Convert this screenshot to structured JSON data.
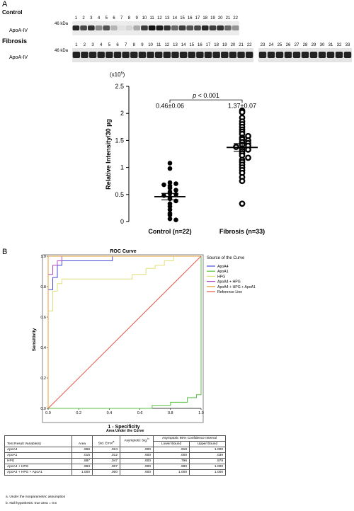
{
  "panel_a": {
    "label": "A",
    "control_title": "Control",
    "fibrosis_title": "Fibrosis",
    "blot_label": "ApoA-IV",
    "marker_label": "46 kDa",
    "control_lanes": [
      "1",
      "2",
      "3",
      "4",
      "5",
      "6",
      "7",
      "8",
      "9",
      "10",
      "11",
      "12",
      "13",
      "14",
      "15",
      "16",
      "17",
      "18",
      "19",
      "20",
      "21",
      "22"
    ],
    "fibrosis_lanes": [
      "1",
      "2",
      "3",
      "4",
      "5",
      "6",
      "7",
      "8",
      "9",
      "10",
      "11",
      "12",
      "13",
      "14",
      "15",
      "16",
      "17",
      "18",
      "19",
      "20",
      "21",
      "22",
      "23",
      "24",
      "25",
      "26",
      "27",
      "28",
      "29",
      "30",
      "31",
      "32",
      "33"
    ]
  },
  "chart_data": [
    {
      "type": "scatter",
      "ylabel": "Relative Intensity/30 µg",
      "ylabel_multiplier": "(x10⁵)",
      "ylim": [
        0,
        2.5
      ],
      "yticks": [
        "0",
        "0.5",
        "1",
        "1.5",
        "2",
        "2.5"
      ],
      "categories": [
        "Control (n=22)",
        "Fibrosis (n=33)"
      ],
      "significance": "p < 0.001",
      "series": [
        {
          "name": "Control (n=22)",
          "marker": "filled-circle",
          "mean": 0.46,
          "sem": 0.06,
          "annotation": "0.46±0.06",
          "values": [
            1.08,
            0.98,
            0.72,
            0.7,
            0.68,
            0.66,
            0.62,
            0.58,
            0.55,
            0.52,
            0.5,
            0.48,
            0.45,
            0.42,
            0.38,
            0.33,
            0.28,
            0.22,
            0.15,
            0.12,
            0.05,
            0.03
          ]
        },
        {
          "name": "Fibrosis (n=33)",
          "marker": "open-circle",
          "mean": 1.37,
          "sem": 0.07,
          "annotation": "1.37±0.07",
          "values": [
            2.05,
            2.02,
            1.92,
            1.85,
            1.8,
            1.75,
            1.7,
            1.66,
            1.62,
            1.58,
            1.55,
            1.52,
            1.5,
            1.47,
            1.45,
            1.42,
            1.4,
            1.38,
            1.35,
            1.33,
            1.3,
            1.26,
            1.22,
            1.18,
            1.14,
            1.1,
            1.05,
            1.0,
            0.95,
            0.9,
            0.82,
            0.75,
            0.33
          ]
        }
      ]
    },
    {
      "type": "line",
      "title": "ROC Curve",
      "xlabel": "1 - Specificity",
      "ylabel": "Sensitivity",
      "xlim": [
        0,
        1
      ],
      "ylim": [
        0,
        1
      ],
      "xticks": [
        "0.0",
        "0.2",
        "0.4",
        "0.6",
        "0.8",
        "1.0"
      ],
      "yticks": [
        "0.0",
        "0.2",
        "0.4",
        "0.6",
        "0.8",
        "1.0"
      ],
      "legend_title": "Source of the Curve",
      "legend_position": "right",
      "series": [
        {
          "name": "ApoA4",
          "color": "#4a4ad8",
          "points": [
            [
              0,
              0
            ],
            [
              0,
              0.78
            ],
            [
              0.03,
              0.78
            ],
            [
              0.03,
              0.86
            ],
            [
              0.06,
              0.86
            ],
            [
              0.06,
              0.94
            ],
            [
              0.09,
              0.94
            ],
            [
              0.09,
              0.97
            ],
            [
              0.42,
              0.97
            ],
            [
              0.42,
              1
            ],
            [
              1,
              1
            ]
          ]
        },
        {
          "name": "ApoA1",
          "color": "#58c23e",
          "points": [
            [
              0,
              0
            ],
            [
              0.68,
              0
            ],
            [
              0.68,
              0.02
            ],
            [
              0.8,
              0.02
            ],
            [
              0.8,
              0.04
            ],
            [
              0.91,
              0.04
            ],
            [
              0.91,
              0.07
            ],
            [
              0.97,
              0.07
            ],
            [
              0.97,
              0.09
            ],
            [
              1,
              0.09
            ],
            [
              1,
              1
            ]
          ]
        },
        {
          "name": "HPG",
          "color": "#e0e07a",
          "points": [
            [
              0,
              0
            ],
            [
              0,
              0.64
            ],
            [
              0.03,
              0.64
            ],
            [
              0.03,
              0.77
            ],
            [
              0.06,
              0.77
            ],
            [
              0.06,
              0.82
            ],
            [
              0.09,
              0.82
            ],
            [
              0.09,
              0.85
            ],
            [
              0.55,
              0.85
            ],
            [
              0.55,
              0.88
            ],
            [
              0.64,
              0.88
            ],
            [
              0.64,
              0.92
            ],
            [
              0.7,
              0.92
            ],
            [
              0.7,
              0.94
            ],
            [
              0.76,
              0.94
            ],
            [
              0.76,
              0.97
            ],
            [
              0.82,
              0.97
            ],
            [
              0.82,
              1
            ],
            [
              1,
              1
            ]
          ]
        },
        {
          "name": "ApoA4 + HPG",
          "color": "#b04cc4",
          "points": [
            [
              0,
              0
            ],
            [
              0,
              0.88
            ],
            [
              0.03,
              0.88
            ],
            [
              0.03,
              0.94
            ],
            [
              0.06,
              0.94
            ],
            [
              0.06,
              0.97
            ],
            [
              0.09,
              0.97
            ],
            [
              0.09,
              1
            ],
            [
              1,
              1
            ]
          ]
        },
        {
          "name": "ApoA4 + HPG + ApoA1",
          "color": "#e6a23a",
          "points": [
            [
              0,
              0
            ],
            [
              0,
              1
            ],
            [
              1,
              1
            ]
          ]
        },
        {
          "name": "Reference Line",
          "color": "#e05a4a",
          "points": [
            [
              0,
              0
            ],
            [
              1,
              1
            ]
          ]
        }
      ]
    }
  ],
  "panel_b": {
    "label": "B",
    "table_title": "Area Under the Curve",
    "headers": {
      "variable": "Test Result Variable(s)",
      "area": "Area",
      "std_error": "Std. Error",
      "std_error_sup": "a",
      "asymp_sig": "Asymptotic Sig.",
      "asymp_sig_sup": "b",
      "ci": "Asymptotic 95% Confidence Interval",
      "lower": "Lower Bound",
      "upper": "Upper Bound"
    },
    "rows": [
      {
        "variable": "ApoA4",
        "area": ".966",
        "se": ".024",
        "sig": ".000",
        "lower": ".919",
        "upper": "1.000"
      },
      {
        "variable": "ApoA1",
        "area": ".015",
        "se": ".012",
        "sig": ".000",
        "lower": ".000",
        "upper": ".039"
      },
      {
        "variable": "HPG",
        "area": ".887",
        "se": ".047",
        "sig": ".000",
        "lower": ".796",
        "upper": ".978"
      },
      {
        "variable": "ApoA4 + HPG",
        "area": ".993",
        "se": ".007",
        "sig": ".000",
        "lower": ".980",
        "upper": "1.000"
      },
      {
        "variable": "ApoA4 + HPG + ApoA1",
        "area": "1.000",
        "se": ".000",
        "sig": ".000",
        "lower": "1.000",
        "upper": "1.000"
      }
    ],
    "footnote_a": "a. Under the nonparametric assumption",
    "footnote_b": "b. Null hypothesis: true area = 0.5"
  }
}
